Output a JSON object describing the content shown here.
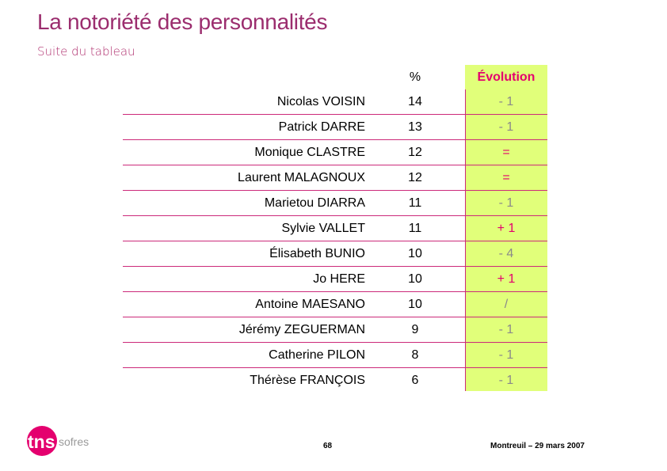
{
  "title": "La notoriété des personnalités",
  "subtitle": "Suite du tableau",
  "columns": {
    "percent": "%",
    "evolution": "Évolution"
  },
  "rows": [
    {
      "name": "Nicolas VOISIN",
      "percent": "14",
      "evolution": "- 1",
      "tone": "gray"
    },
    {
      "name": "Patrick DARRE",
      "percent": "13",
      "evolution": "- 1",
      "tone": "gray"
    },
    {
      "name": "Monique CLASTRE",
      "percent": "12",
      "evolution": "=",
      "tone": "pink"
    },
    {
      "name": "Laurent MALAGNOUX",
      "percent": "12",
      "evolution": "=",
      "tone": "pink"
    },
    {
      "name": "Marietou DIARRA",
      "percent": "11",
      "evolution": "- 1",
      "tone": "gray"
    },
    {
      "name": "Sylvie VALLET",
      "percent": "11",
      "evolution": "+ 1",
      "tone": "pink"
    },
    {
      "name": "Élisabeth BUNIO",
      "percent": "10",
      "evolution": "- 4",
      "tone": "gray"
    },
    {
      "name": "Jo HERE",
      "percent": "10",
      "evolution": "+ 1",
      "tone": "pink"
    },
    {
      "name": "Antoine MAESANO",
      "percent": "10",
      "evolution": "/",
      "tone": "gray"
    },
    {
      "name": "Jérémy ZEGUERMAN",
      "percent": "9",
      "evolution": "- 1",
      "tone": "gray"
    },
    {
      "name": "Catherine PILON",
      "percent": "8",
      "evolution": "- 1",
      "tone": "gray"
    },
    {
      "name": "Thérèse FRANÇOIS",
      "percent": "6",
      "evolution": "- 1",
      "tone": "gray"
    }
  ],
  "logo": {
    "brand": "tns",
    "name": "sofres",
    "icon": "tns-sofres-logo"
  },
  "footer": {
    "page": "68",
    "location_date": "Montreuil – 29 mars 2007"
  },
  "colors": {
    "accent": "#9b2d6e",
    "pink": "#e4006e",
    "evolution_bg": "#e1ff7a",
    "rule": "#cc2a7a",
    "down": "#8a8a8a"
  }
}
